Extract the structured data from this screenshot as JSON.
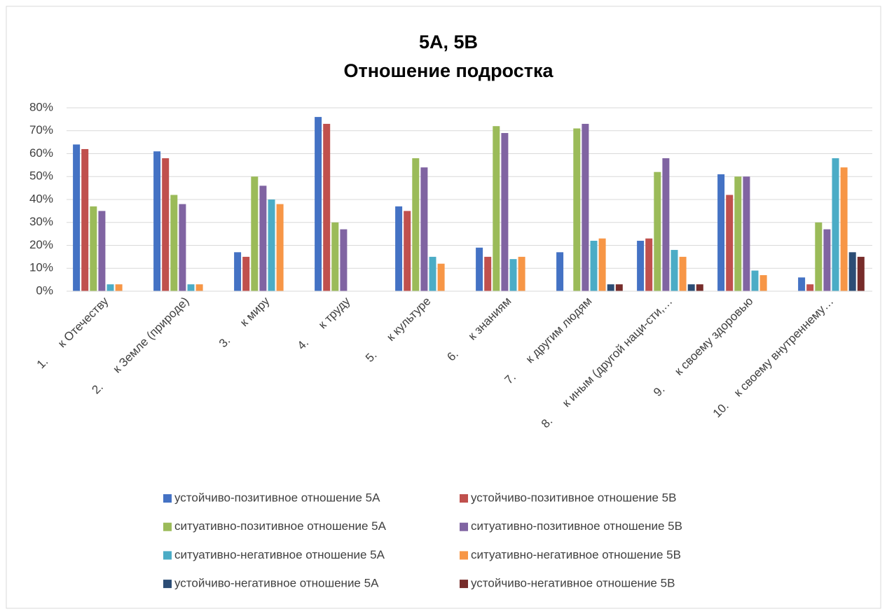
{
  "chart_data": {
    "type": "bar",
    "title": [
      "5A, 5B",
      "Отношение подростка"
    ],
    "categories": [
      "1.      к Отечеству",
      "2.      к Земле (природе)",
      "3.      к миру",
      "4.      к труду",
      "5.      к культуре",
      "6.      к знаниям",
      "7.      к другим людям",
      "8.      к иным (другой наци-сти,…",
      "9.      к своему здоровью",
      "10.    к своему внутреннему…"
    ],
    "series": [
      {
        "name": "устойчиво-позитивное отношение 5А",
        "color": "#4472c4",
        "values": [
          64,
          61,
          17,
          76,
          37,
          19,
          17,
          22,
          51,
          6
        ]
      },
      {
        "name": "устойчиво-позитивное отношение 5В",
        "color": "#c0504d",
        "values": [
          62,
          58,
          15,
          73,
          35,
          15,
          0,
          23,
          42,
          3
        ]
      },
      {
        "name": "ситуативно-позитивное отношение 5А",
        "color": "#9bbb59",
        "values": [
          37,
          42,
          50,
          30,
          58,
          72,
          71,
          52,
          50,
          30
        ]
      },
      {
        "name": "ситуативно-позитивное отношение 5В",
        "color": "#8064a2",
        "values": [
          35,
          38,
          46,
          27,
          54,
          69,
          73,
          58,
          50,
          27
        ]
      },
      {
        "name": "ситуативно-негативное отношение 5А",
        "color": "#4bacc6",
        "values": [
          3,
          3,
          40,
          0,
          15,
          14,
          22,
          18,
          9,
          58
        ]
      },
      {
        "name": "ситуативно-негативное отношение 5В",
        "color": "#f79646",
        "values": [
          3,
          3,
          38,
          0,
          12,
          15,
          23,
          15,
          7,
          54
        ]
      },
      {
        "name": "устойчиво-негативное отношение 5А",
        "color": "#2c4d75",
        "values": [
          0,
          0,
          0,
          0,
          0,
          0,
          3,
          3,
          0,
          17
        ]
      },
      {
        "name": "устойчиво-негативное отношение 5В",
        "color": "#772c2a",
        "values": [
          0,
          0,
          0,
          0,
          0,
          0,
          3,
          3,
          0,
          15
        ]
      }
    ],
    "ylim": [
      0,
      80
    ],
    "yticks": [
      {
        "value": 0,
        "label": "0%"
      },
      {
        "value": 10,
        "label": "10%"
      },
      {
        "value": 20,
        "label": "20%"
      },
      {
        "value": 30,
        "label": "30%"
      },
      {
        "value": 40,
        "label": "40%"
      },
      {
        "value": 50,
        "label": "50%"
      },
      {
        "value": 60,
        "label": "60%"
      },
      {
        "value": 70,
        "label": "70%"
      },
      {
        "value": 80,
        "label": "80%"
      }
    ],
    "grid": true,
    "legend": "bottom"
  }
}
